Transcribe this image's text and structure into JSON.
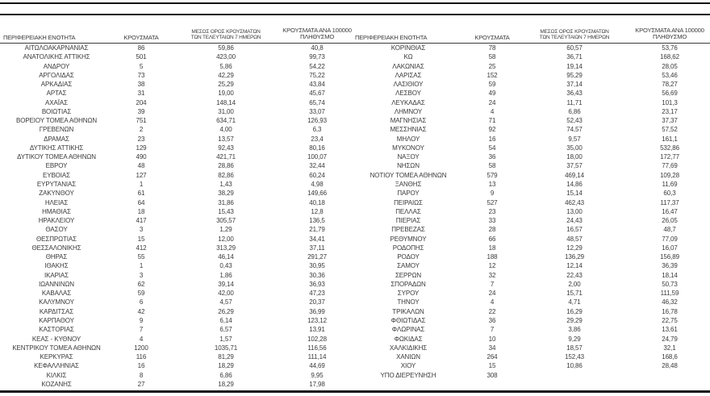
{
  "rules": {
    "color": "#141414",
    "count": 3
  },
  "headers": {
    "region": "ΠΕΡΙΦΕΡΕΙΑΚΗ ΕΝΟΤΗΤΑ",
    "cases": "ΚΡΟΥΣΜΑΤΑ",
    "avg7_line1": "ΜΕΣΟΣ ΟΡΟΣ ΚΡΟΥΣΜΑΤΩΝ",
    "avg7_line2": "ΤΩΝ ΤΕΛΕΥΤΑΙΩΝ 7 ΗΜΕΡΩΝ",
    "per100k_line1": "ΚΡΟΥΣΜΑΤΑ ΑΝΑ 100000",
    "per100k_line2": "ΠΛΗΘΥΣΜΟ"
  },
  "left_table": {
    "rows": [
      [
        "ΑΙΤΩΛΟΑΚΑΡΝΑΝΙΑΣ",
        "86",
        "59,86",
        "40,8"
      ],
      [
        "ΑΝΑΤΟΛΙΚΗΣ ΑΤΤΙΚΗΣ",
        "501",
        "423,00",
        "99,73"
      ],
      [
        "ΑΝΔΡΟΥ",
        "5",
        "5,86",
        "54,22"
      ],
      [
        "ΑΡΓΟΛΙΔΑΣ",
        "73",
        "42,29",
        "75,22"
      ],
      [
        "ΑΡΚΑΔΙΑΣ",
        "38",
        "25,29",
        "43,84"
      ],
      [
        "ΑΡΤΑΣ",
        "31",
        "19,00",
        "45,67"
      ],
      [
        "ΑΧΑΪΑΣ",
        "204",
        "148,14",
        "65,74"
      ],
      [
        "ΒΟΙΩΤΙΑΣ",
        "39",
        "31,00",
        "33,07"
      ],
      [
        "ΒΟΡΕΙΟΥ ΤΟΜΕΑ ΑΘΗΝΩΝ",
        "751",
        "634,71",
        "126,93"
      ],
      [
        "ΓΡΕΒΕΝΩΝ",
        "2",
        "4,00",
        "6,3"
      ],
      [
        "ΔΡΑΜΑΣ",
        "23",
        "13,57",
        "23,4"
      ],
      [
        "ΔΥΤΙΚΗΣ ΑΤΤΙΚΗΣ",
        "129",
        "92,43",
        "80,16"
      ],
      [
        "ΔΥΤΙΚΟΥ ΤΟΜΕΑ ΑΘΗΝΩΝ",
        "490",
        "421,71",
        "100,07"
      ],
      [
        "ΕΒΡΟΥ",
        "48",
        "28,86",
        "32,44"
      ],
      [
        "ΕΥΒΟΙΑΣ",
        "127",
        "82,86",
        "60,24"
      ],
      [
        "ΕΥΡΥΤΑΝΙΑΣ",
        "1",
        "1,43",
        "4,98"
      ],
      [
        "ΖΑΚΥΝΘΟΥ",
        "61",
        "38,29",
        "149,66"
      ],
      [
        "ΗΛΕΙΑΣ",
        "64",
        "31,86",
        "40,18"
      ],
      [
        "ΗΜΑΘΙΑΣ",
        "18",
        "15,43",
        "12,8"
      ],
      [
        "ΗΡΑΚΛΕΙΟΥ",
        "417",
        "305,57",
        "136,5"
      ],
      [
        "ΘΑΣΟΥ",
        "3",
        "1,29",
        "21,79"
      ],
      [
        "ΘΕΣΠΡΩΤΙΑΣ",
        "15",
        "12,00",
        "34,41"
      ],
      [
        "ΘΕΣΣΑΛΟΝΙΚΗΣ",
        "412",
        "313,29",
        "37,11"
      ],
      [
        "ΘΗΡΑΣ",
        "55",
        "46,14",
        "291,27"
      ],
      [
        "ΙΘΑΚΗΣ",
        "1",
        "0,43",
        "30,95"
      ],
      [
        "ΙΚΑΡΙΑΣ",
        "3",
        "1,86",
        "30,36"
      ],
      [
        "ΙΩΑΝΝΙΝΩΝ",
        "62",
        "39,14",
        "36,93"
      ],
      [
        "ΚΑΒΑΛΑΣ",
        "59",
        "42,00",
        "47,23"
      ],
      [
        "ΚΑΛΥΜΝΟΥ",
        "6",
        "4,57",
        "20,37"
      ],
      [
        "ΚΑΡΔΙΤΣΑΣ",
        "42",
        "26,29",
        "36,99"
      ],
      [
        "ΚΑΡΠΑΘΟΥ",
        "9",
        "6,14",
        "123,12"
      ],
      [
        "ΚΑΣΤΟΡΙΑΣ",
        "7",
        "6,57",
        "13,91"
      ],
      [
        "ΚΕΑΣ - ΚΥΘΝΟΥ",
        "4",
        "1,57",
        "102,28"
      ],
      [
        "ΚΕΝΤΡΙΚΟΥ ΤΟΜΕΑ ΑΘΗΝΩΝ",
        "1200",
        "1035,71",
        "116,56"
      ],
      [
        "ΚΕΡΚΥΡΑΣ",
        "116",
        "81,29",
        "111,14"
      ],
      [
        "ΚΕΦΑΛΛΗΝΙΑΣ",
        "16",
        "18,29",
        "44,69"
      ],
      [
        "ΚΙΛΚΙΣ",
        "8",
        "6,86",
        "9,95"
      ],
      [
        "ΚΟΖΑΝΗΣ",
        "27",
        "18,29",
        "17,98"
      ]
    ]
  },
  "right_table": {
    "rows": [
      [
        "ΚΟΡΙΝΘΙΑΣ",
        "78",
        "60,57",
        "53,76"
      ],
      [
        "ΚΩ",
        "58",
        "36,71",
        "168,62"
      ],
      [
        "ΛΑΚΩΝΙΑΣ",
        "25",
        "19,14",
        "28,05"
      ],
      [
        "ΛΑΡΙΣΑΣ",
        "152",
        "95,29",
        "53,46"
      ],
      [
        "ΛΑΣΙΘΙΟΥ",
        "59",
        "37,14",
        "78,27"
      ],
      [
        "ΛΕΣΒΟΥ",
        "49",
        "36,43",
        "56,69"
      ],
      [
        "ΛΕΥΚΑΔΑΣ",
        "24",
        "11,71",
        "101,3"
      ],
      [
        "ΛΗΜΝΟΥ",
        "4",
        "6,86",
        "23,17"
      ],
      [
        "ΜΑΓΝΗΣΙΑΣ",
        "71",
        "52,43",
        "37,37"
      ],
      [
        "ΜΕΣΣΗΝΙΑΣ",
        "92",
        "74,57",
        "57,52"
      ],
      [
        "ΜΗΛΟΥ",
        "16",
        "9,57",
        "161,1"
      ],
      [
        "ΜΥΚΟΝΟΥ",
        "54",
        "35,00",
        "532,86"
      ],
      [
        "ΝΑΞΟΥ",
        "36",
        "18,00",
        "172,77"
      ],
      [
        "ΝΗΣΩΝ",
        "58",
        "37,57",
        "77,69"
      ],
      [
        "ΝΟΤΙΟΥ ΤΟΜΕΑ ΑΘΗΝΩΝ",
        "579",
        "469,14",
        "109,28"
      ],
      [
        "ΞΑΝΘΗΣ",
        "13",
        "14,86",
        "11,69"
      ],
      [
        "ΠΑΡΟΥ",
        "9",
        "15,14",
        "60,3"
      ],
      [
        "ΠΕΙΡΑΙΩΣ",
        "527",
        "462,43",
        "117,37"
      ],
      [
        "ΠΕΛΛΑΣ",
        "23",
        "13,00",
        "16,47"
      ],
      [
        "ΠΙΕΡΙΑΣ",
        "33",
        "24,43",
        "26,05"
      ],
      [
        "ΠΡΕΒΕΖΑΣ",
        "28",
        "16,57",
        "48,7"
      ],
      [
        "ΡΕΘΥΜΝΟΥ",
        "66",
        "48,57",
        "77,09"
      ],
      [
        "ΡΟΔΟΠΗΣ",
        "18",
        "12,29",
        "16,07"
      ],
      [
        "ΡΟΔΟΥ",
        "188",
        "136,29",
        "156,89"
      ],
      [
        "ΣΑΜΟΥ",
        "12",
        "12,14",
        "36,39"
      ],
      [
        "ΣΕΡΡΩΝ",
        "32",
        "22,43",
        "18,14"
      ],
      [
        "ΣΠΟΡΑΔΩΝ",
        "7",
        "2,00",
        "50,73"
      ],
      [
        "ΣΥΡΟΥ",
        "24",
        "15,71",
        "111,59"
      ],
      [
        "ΤΗΝΟΥ",
        "4",
        "4,71",
        "46,32"
      ],
      [
        "ΤΡΙΚΑΛΩΝ",
        "22",
        "16,29",
        "16,78"
      ],
      [
        "ΦΘΙΩΤΙΔΑΣ",
        "36",
        "29,29",
        "22,75"
      ],
      [
        "ΦΛΩΡΙΝΑΣ",
        "7",
        "3,86",
        "13,61"
      ],
      [
        "ΦΩΚΙΔΑΣ",
        "10",
        "9,29",
        "24,79"
      ],
      [
        "ΧΑΛΚΙΔΙΚΗΣ",
        "34",
        "18,57",
        "32,1"
      ],
      [
        "ΧΑΝΙΩΝ",
        "264",
        "152,43",
        "168,6"
      ],
      [
        "ΧΙΟΥ",
        "15",
        "10,86",
        "28,48"
      ],
      [
        "ΥΠΟ ΔΙΕΡΕΥΝΗΣΗ",
        "308",
        "",
        ""
      ]
    ]
  }
}
